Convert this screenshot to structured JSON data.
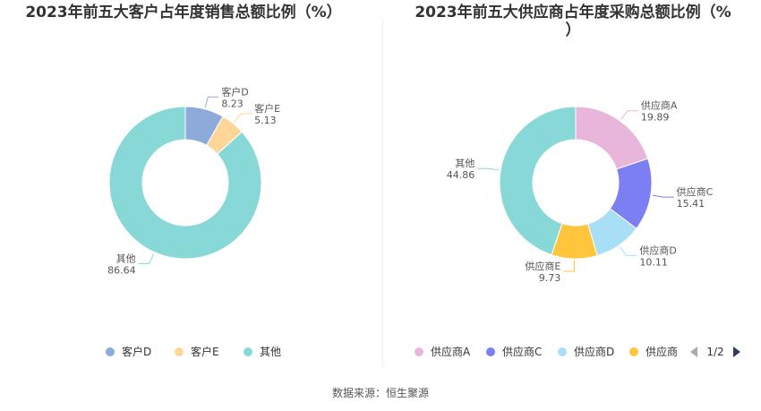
{
  "source_label": "数据来源：恒生聚源",
  "pager": {
    "text": "1/2"
  },
  "chart_data": [
    {
      "type": "pie",
      "title": "2023年前五大客户占年度销售总额比例（%）",
      "slices": [
        {
          "name": "客户D",
          "label": "8.23",
          "value": 8.23,
          "color": "#8eaadb"
        },
        {
          "name": "客户E",
          "label": "5.13",
          "value": 5.13,
          "color": "#ffd699"
        },
        {
          "name": "其他",
          "label": "86.64",
          "value": 86.64,
          "color": "#88d8d8"
        }
      ],
      "legend": [
        "客户D",
        "客户E",
        "其他"
      ],
      "legend_position": "bottom"
    },
    {
      "type": "pie",
      "title_line1": "2023年前五大供应商占年度采购总额比例（%",
      "title_line2": "）",
      "slices": [
        {
          "name": "供应商A",
          "label": "19.89",
          "value": 19.89,
          "color": "#e8b6da"
        },
        {
          "name": "供应商C",
          "label": "15.41",
          "value": 15.41,
          "color": "#7b7ff2"
        },
        {
          "name": "供应商D",
          "label": "10.11",
          "value": 10.11,
          "color": "#a9def7"
        },
        {
          "name": "供应商E",
          "label": "9.73",
          "value": 9.73,
          "color": "#ffc53d"
        },
        {
          "name": "其他",
          "label": "44.86",
          "value": 44.86,
          "color": "#88d8d8"
        }
      ],
      "legend": [
        "供应商A",
        "供应商C",
        "供应商D",
        "供应商"
      ],
      "legend_position": "bottom"
    }
  ]
}
